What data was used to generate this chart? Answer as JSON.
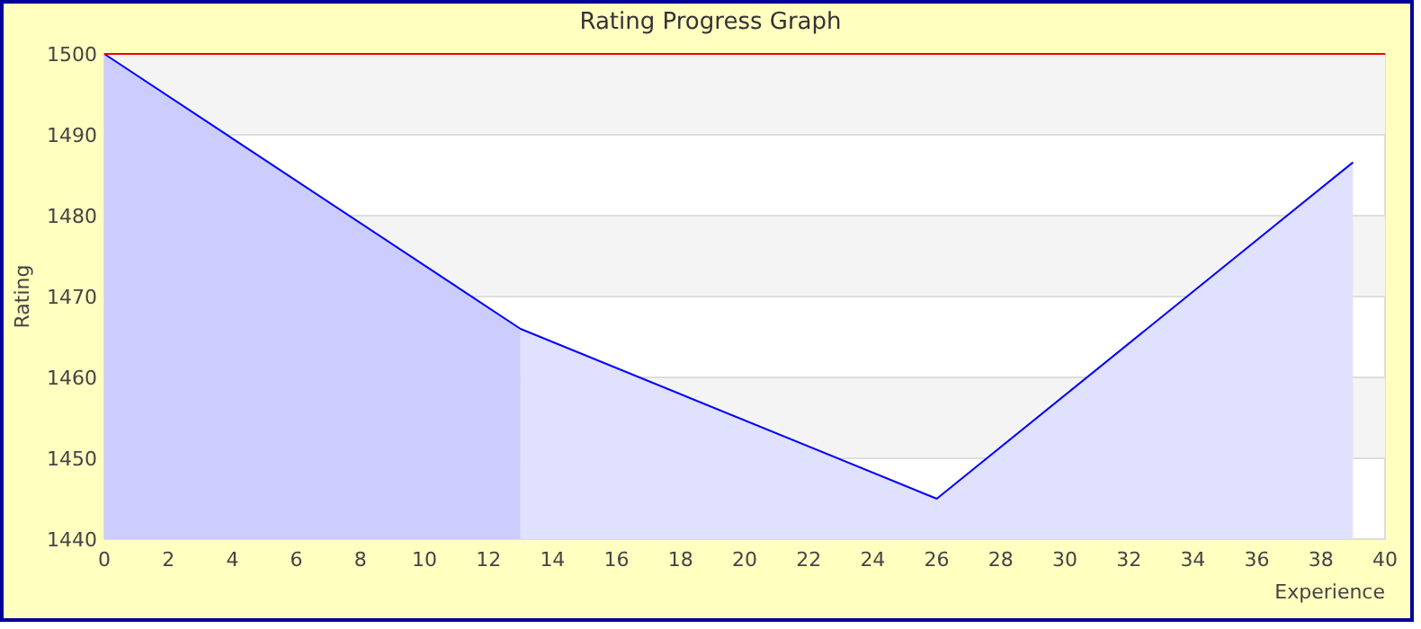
{
  "chart_data": {
    "type": "line",
    "title": "Rating Progress Graph",
    "xlabel": "Experience",
    "ylabel": "Rating",
    "xlim": [
      0,
      40
    ],
    "xticks": [
      0,
      2,
      4,
      6,
      8,
      10,
      12,
      14,
      16,
      18,
      20,
      22,
      24,
      26,
      28,
      30,
      32,
      34,
      36,
      38,
      40
    ],
    "ylim": [
      1440,
      1500
    ],
    "yticks": [
      1440,
      1450,
      1460,
      1470,
      1480,
      1490,
      1500
    ],
    "grid": "y",
    "bands": [
      {
        "axis": "y",
        "from": 1450,
        "to": 1460,
        "color": "#f4f4f4"
      },
      {
        "axis": "y",
        "from": 1470,
        "to": 1480,
        "color": "#f4f4f4"
      },
      {
        "axis": "y",
        "from": 1490,
        "to": 1500,
        "color": "#f4f4f4"
      }
    ],
    "ref_lines": [
      {
        "axis": "y",
        "value": 1500,
        "color": "#ff0000"
      }
    ],
    "series": [
      {
        "type": "area",
        "color": "#ccccff",
        "x": [
          0,
          13
        ],
        "values": [
          1500,
          1466
        ]
      },
      {
        "type": "area",
        "color": "#e0e0ff",
        "x": [
          13,
          26,
          39
        ],
        "values": [
          1466,
          1445,
          1486.6
        ]
      },
      {
        "color": "#0000ff",
        "x": [
          0,
          13,
          26,
          39
        ],
        "values": [
          1500,
          1466,
          1445,
          1486.6
        ]
      }
    ]
  }
}
